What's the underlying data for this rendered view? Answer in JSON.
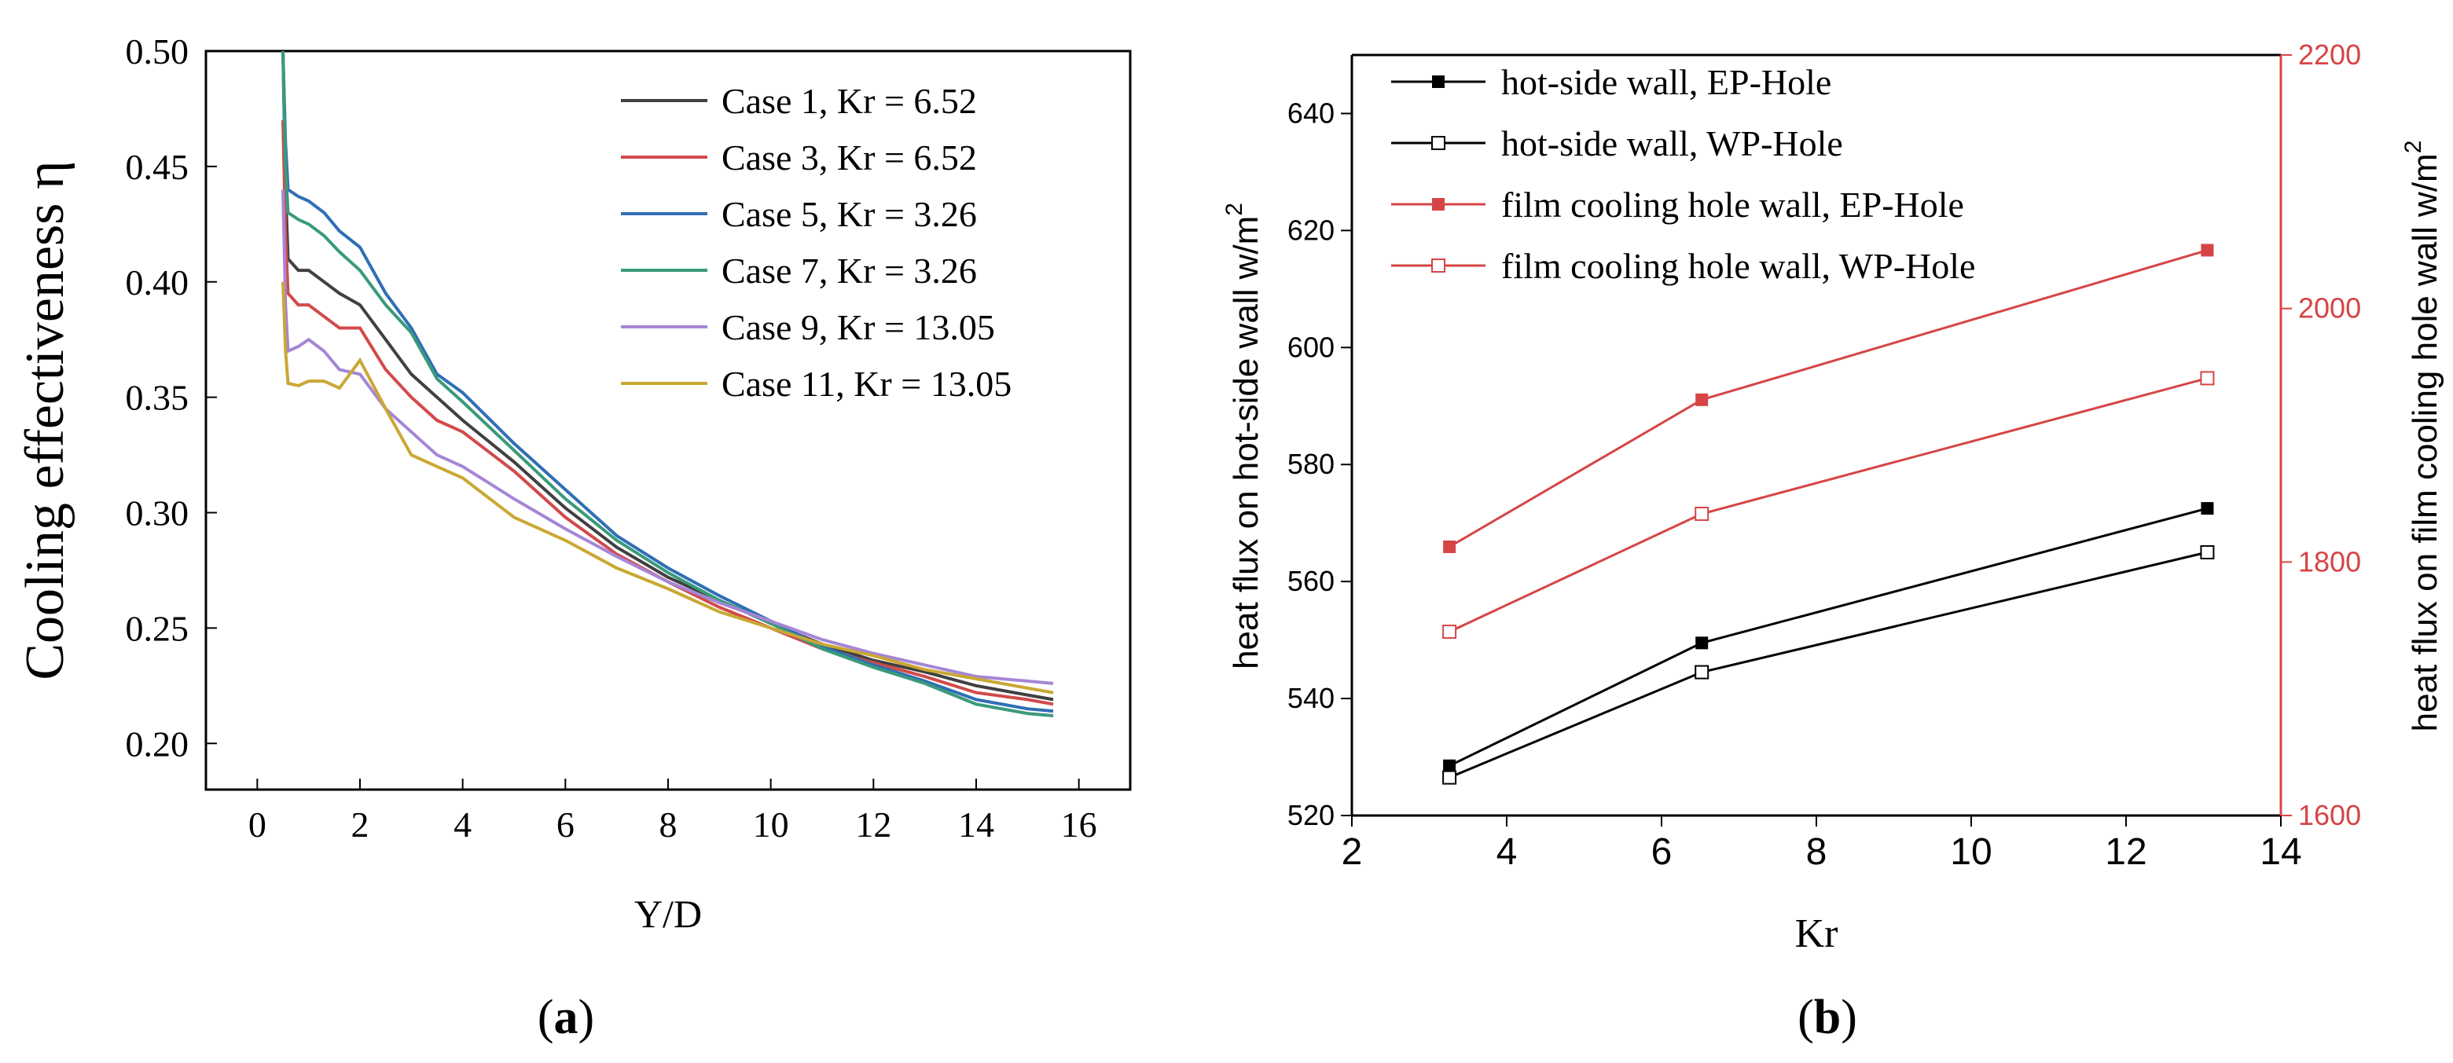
{
  "chart_data": [
    {
      "panel_label": "a",
      "type": "line",
      "title": "",
      "xlabel": "Y/D",
      "ylabel": "Cooling effectiveness η",
      "xlim": [
        -1,
        17
      ],
      "ylim": [
        0.18,
        0.5
      ],
      "xticks": [
        0,
        2,
        4,
        6,
        8,
        10,
        12,
        14,
        16
      ],
      "yticks": [
        0.2,
        0.25,
        0.3,
        0.35,
        0.4,
        0.45,
        0.5
      ],
      "xtick_labels": [
        "0",
        "2",
        "4",
        "6",
        "8",
        "10",
        "12",
        "14",
        "16"
      ],
      "ytick_labels": [
        "0.20",
        "0.25",
        "0.30",
        "0.35",
        "0.40",
        "0.45",
        "0.50"
      ],
      "legend_position": "top-right",
      "series": [
        {
          "name": "Case 1, Kr = 6.52",
          "color": "#404040",
          "x": [
            0.5,
            0.55,
            0.6,
            0.8,
            1.0,
            1.3,
            1.6,
            2.0,
            2.5,
            3.0,
            3.5,
            4.0,
            5.0,
            6.0,
            7.0,
            8.0,
            9.0,
            10.0,
            11.0,
            12.0,
            13.0,
            14.0,
            15.0,
            15.5
          ],
          "y": [
            0.5,
            0.44,
            0.41,
            0.405,
            0.405,
            0.4,
            0.395,
            0.39,
            0.375,
            0.36,
            0.35,
            0.34,
            0.322,
            0.302,
            0.285,
            0.272,
            0.262,
            0.252,
            0.243,
            0.236,
            0.231,
            0.225,
            0.221,
            0.219
          ]
        },
        {
          "name": "Case 3, Kr = 6.52",
          "color": "#d24a4a",
          "x": [
            0.5,
            0.55,
            0.6,
            0.8,
            1.0,
            1.3,
            1.6,
            2.0,
            2.5,
            3.0,
            3.5,
            4.0,
            5.0,
            6.0,
            7.0,
            8.0,
            9.0,
            10.0,
            11.0,
            12.0,
            13.0,
            14.0,
            15.0,
            15.5
          ],
          "y": [
            0.47,
            0.42,
            0.395,
            0.39,
            0.39,
            0.385,
            0.38,
            0.38,
            0.362,
            0.35,
            0.34,
            0.335,
            0.318,
            0.298,
            0.282,
            0.27,
            0.259,
            0.25,
            0.241,
            0.235,
            0.229,
            0.222,
            0.219,
            0.217
          ]
        },
        {
          "name": "Case 5, Kr = 3.26",
          "color": "#2f6fb5",
          "x": [
            0.5,
            0.55,
            0.6,
            0.8,
            1.0,
            1.3,
            1.6,
            2.0,
            2.5,
            3.0,
            3.5,
            4.0,
            5.0,
            6.0,
            7.0,
            8.0,
            9.0,
            10.0,
            11.0,
            12.0,
            13.0,
            14.0,
            15.0,
            15.5
          ],
          "y": [
            0.5,
            0.46,
            0.44,
            0.437,
            0.435,
            0.43,
            0.422,
            0.415,
            0.395,
            0.38,
            0.36,
            0.352,
            0.33,
            0.31,
            0.29,
            0.276,
            0.264,
            0.253,
            0.242,
            0.234,
            0.227,
            0.219,
            0.215,
            0.214
          ]
        },
        {
          "name": "Case 7, Kr = 3.26",
          "color": "#3a9a7a",
          "x": [
            0.5,
            0.55,
            0.6,
            0.8,
            1.0,
            1.3,
            1.6,
            2.0,
            2.5,
            3.0,
            3.5,
            4.0,
            5.0,
            6.0,
            7.0,
            8.0,
            9.0,
            10.0,
            11.0,
            12.0,
            13.0,
            14.0,
            15.0,
            15.5
          ],
          "y": [
            0.5,
            0.45,
            0.43,
            0.427,
            0.425,
            0.42,
            0.413,
            0.405,
            0.39,
            0.378,
            0.358,
            0.348,
            0.327,
            0.306,
            0.288,
            0.274,
            0.262,
            0.252,
            0.241,
            0.233,
            0.226,
            0.217,
            0.213,
            0.212
          ]
        },
        {
          "name": "Case 9, Kr = 13.05",
          "color": "#a586d6",
          "x": [
            0.5,
            0.55,
            0.6,
            0.8,
            1.0,
            1.3,
            1.6,
            2.0,
            2.5,
            3.0,
            3.5,
            4.0,
            5.0,
            6.0,
            7.0,
            8.0,
            9.0,
            10.0,
            11.0,
            12.0,
            13.0,
            14.0,
            15.0,
            15.5
          ],
          "y": [
            0.44,
            0.39,
            0.37,
            0.372,
            0.375,
            0.37,
            0.362,
            0.36,
            0.345,
            0.335,
            0.325,
            0.32,
            0.306,
            0.293,
            0.281,
            0.27,
            0.261,
            0.253,
            0.245,
            0.239,
            0.234,
            0.229,
            0.227,
            0.226
          ]
        },
        {
          "name": "Case 11, Kr = 13.05",
          "color": "#c9a834",
          "x": [
            0.5,
            0.55,
            0.6,
            0.8,
            1.0,
            1.3,
            1.6,
            2.0,
            2.5,
            3.0,
            3.5,
            4.0,
            5.0,
            6.0,
            7.0,
            8.0,
            9.0,
            10.0,
            11.0,
            12.0,
            13.0,
            14.0,
            15.0,
            15.5
          ],
          "y": [
            0.4,
            0.37,
            0.356,
            0.355,
            0.357,
            0.357,
            0.354,
            0.366,
            0.345,
            0.325,
            0.32,
            0.315,
            0.298,
            0.288,
            0.276,
            0.267,
            0.257,
            0.25,
            0.243,
            0.238,
            0.232,
            0.228,
            0.224,
            0.222
          ]
        }
      ]
    },
    {
      "panel_label": "b",
      "type": "line",
      "title": "",
      "xlabel": "Kr",
      "ylabel": "heat flux on hot-side wall w/m",
      "ylabel_sup": "2",
      "y2label": "heat flux on film cooling hole wall w/m",
      "y2label_sup": "2",
      "xlim": [
        2,
        14
      ],
      "ylim": [
        520,
        650
      ],
      "y2lim": [
        1600,
        2200
      ],
      "xticks": [
        2,
        4,
        6,
        8,
        10,
        12,
        14
      ],
      "yticks": [
        520,
        540,
        560,
        580,
        600,
        620,
        640
      ],
      "y2ticks": [
        1600,
        1800,
        2000,
        2200
      ],
      "xtick_labels": [
        "2",
        "4",
        "6",
        "8",
        "10",
        "12",
        "14"
      ],
      "ytick_labels": [
        "520",
        "540",
        "560",
        "580",
        "600",
        "620",
        "640"
      ],
      "y2tick_labels": [
        "1600",
        "1800",
        "2000",
        "2200"
      ],
      "legend_position": "top-left",
      "axis_right_color": "#d64545",
      "series": [
        {
          "name": "hot-side wall, EP-Hole",
          "axis": "left",
          "color": "#000000",
          "marker": "filled-square",
          "x": [
            3.26,
            6.52,
            13.05
          ],
          "y": [
            528.5,
            549.5,
            572.5
          ]
        },
        {
          "name": "hot-side wall, WP-Hole",
          "axis": "left",
          "color": "#000000",
          "marker": "half-square",
          "x": [
            3.26,
            6.52,
            13.05
          ],
          "y": [
            526.5,
            544.5,
            565.0
          ]
        },
        {
          "name": "film cooling hole wall, EP-Hole",
          "axis": "right",
          "color": "#d64545",
          "marker": "filled-square",
          "x": [
            3.26,
            6.52,
            13.05
          ],
          "y": [
            1812,
            1928,
            2046
          ]
        },
        {
          "name": "film cooling hole wall, WP-Hole",
          "axis": "right",
          "color": "#d64545",
          "marker": "half-square",
          "x": [
            3.26,
            6.52,
            13.05
          ],
          "y": [
            1745,
            1838,
            1945
          ]
        }
      ]
    }
  ]
}
